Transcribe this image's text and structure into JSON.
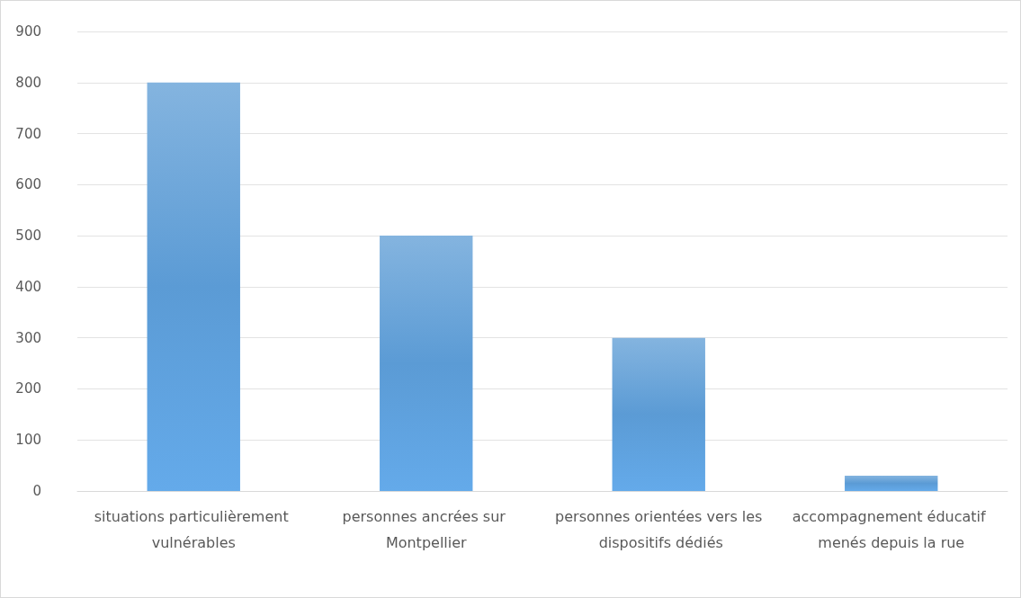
{
  "chart_data": {
    "type": "bar",
    "categories": [
      "situations particulièrement vulnérables",
      "personnes ancrées sur Montpellier",
      "personnes orientées vers les dispositifs dédiés",
      "accompagnement éducatif menés depuis la rue"
    ],
    "values": [
      800,
      500,
      300,
      30
    ],
    "color": "#5b9bd5",
    "ylim": [
      0,
      900
    ],
    "yticks": [
      0,
      100,
      200,
      300,
      400,
      500,
      600,
      700,
      800,
      900
    ],
    "grid": "y"
  }
}
